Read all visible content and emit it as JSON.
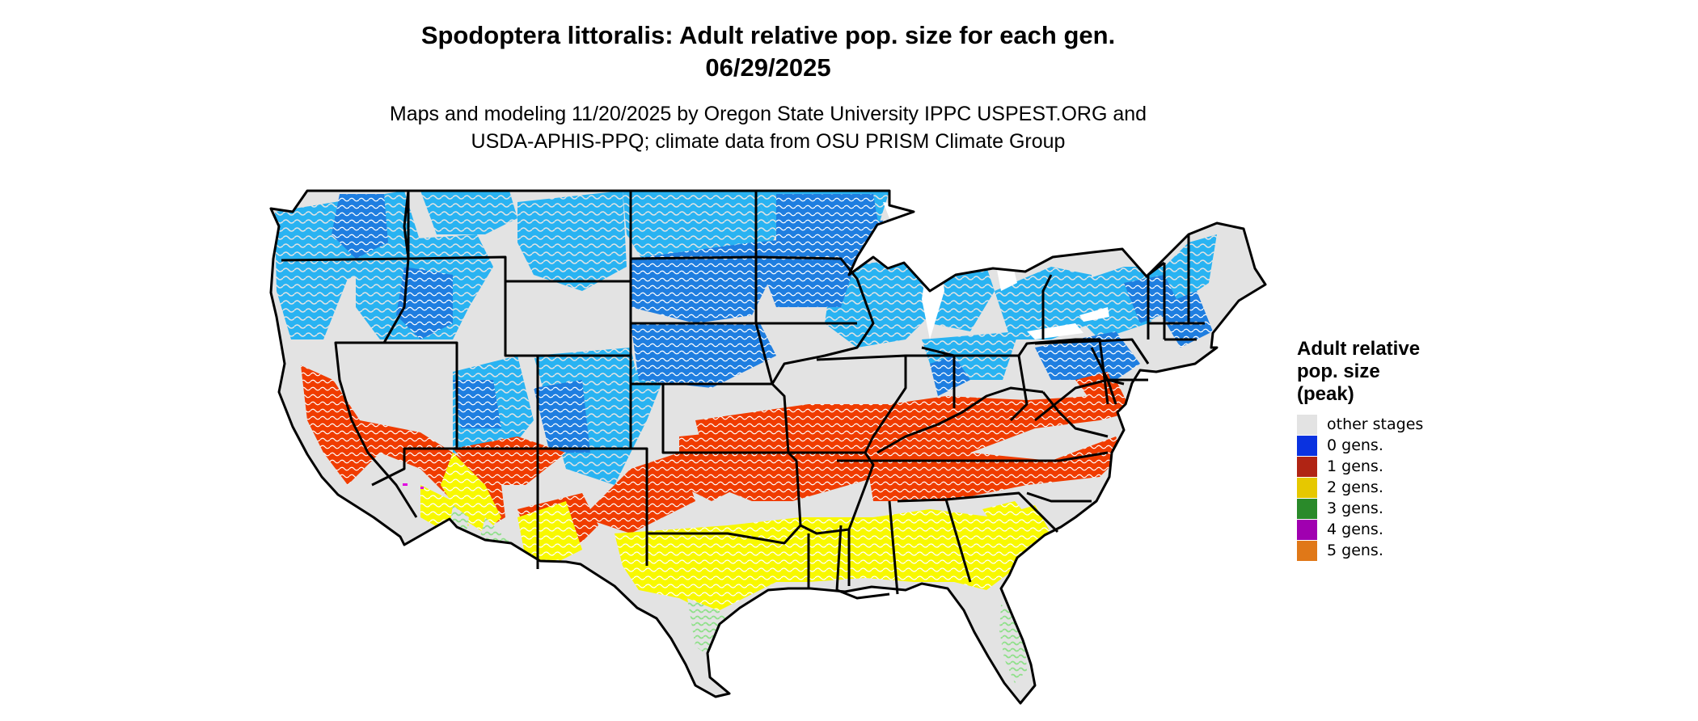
{
  "title": {
    "line1": "Spodoptera littoralis: Adult relative pop. size for each gen.",
    "line2": "06/29/2025"
  },
  "subtitle": {
    "line1": "Maps and modeling 11/20/2025 by Oregon State University IPPC USPEST.ORG and",
    "line2": "USDA-APHIS-PPQ; climate data from OSU PRISM Climate Group"
  },
  "legend": {
    "title_lines": [
      "Adult relative",
      "pop. size",
      "(peak)"
    ],
    "items": [
      {
        "label": "other stages",
        "color": "#e3e3e3"
      },
      {
        "label": "0 gens.",
        "color": "#0a32e0"
      },
      {
        "label": "1 gens.",
        "color": "#b02414"
      },
      {
        "label": "2 gens.",
        "color": "#e6c800"
      },
      {
        "label": "3 gens.",
        "color": "#2a8a2a"
      },
      {
        "label": "4 gens.",
        "color": "#a000b0"
      },
      {
        "label": "5 gens.",
        "color": "#e07818"
      }
    ]
  },
  "map": {
    "region": "Contiguous United States",
    "zone_colors": {
      "base": "#e3e3e3",
      "zero_gens_light": "#29b3f2",
      "zero_gens_dark": "#1f7ee0",
      "one_gen": "#f03c00",
      "two_gens": "#f8f800",
      "three_gens": "#8fe08a",
      "four_gens": "#e000e0",
      "border": "#000000"
    }
  }
}
